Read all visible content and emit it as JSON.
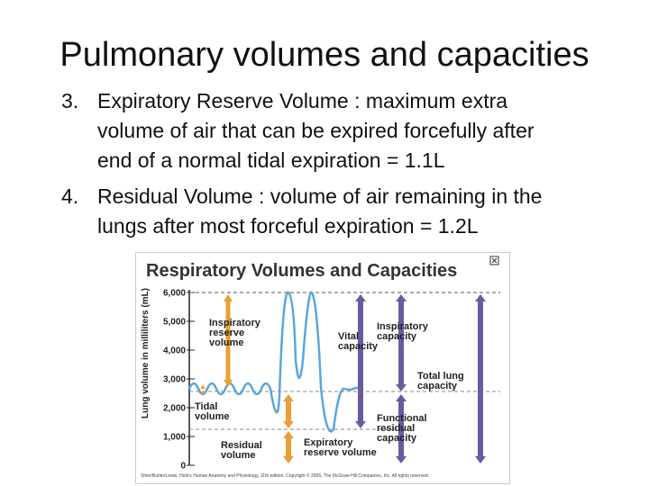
{
  "slide": {
    "title": "Pulmonary volumes and capacities",
    "items": [
      {
        "number": "3.",
        "lines": [
          "Expiratory Reserve Volume : maximum extra",
          "volume of air that can be expired forcefully after",
          "end of a normal tidal expiration = 1.1L"
        ]
      },
      {
        "number": "4.",
        "lines": [
          "Residual Volume : volume of air remaining in the",
          "lungs after most forceful expiration = 1.2L"
        ]
      }
    ]
  },
  "figure": {
    "title": "Respiratory Volumes and Capacities",
    "y_axis_label": "Lung volume in milliliters (mL)",
    "y_ticks": [
      "6,000",
      "5,000",
      "4,000",
      "3,000",
      "2,000",
      "1,000",
      "0"
    ],
    "labels": {
      "inspiratory_reserve": [
        "Inspiratory",
        "reserve",
        "volume"
      ],
      "tidal": [
        "Tidal",
        "volume"
      ],
      "residual": [
        "Residual",
        "volume"
      ],
      "expiratory_reserve": [
        "Expiratory",
        "reserve volume"
      ],
      "vital": [
        "Vital",
        "capacity"
      ],
      "inspiratory_capacity": [
        "Inspiratory",
        "capacity"
      ],
      "total_lung": [
        "Total lung",
        "capacity"
      ],
      "functional_residual": [
        "Functional",
        "residual",
        "capacity"
      ]
    },
    "credit": "Shier/Butler/Lewis, Hole's Human Anatomy and Physiology, 11th edition. Copyright © 2006, The McGraw-Hill Companies, Inc. All rights reserved."
  }
}
